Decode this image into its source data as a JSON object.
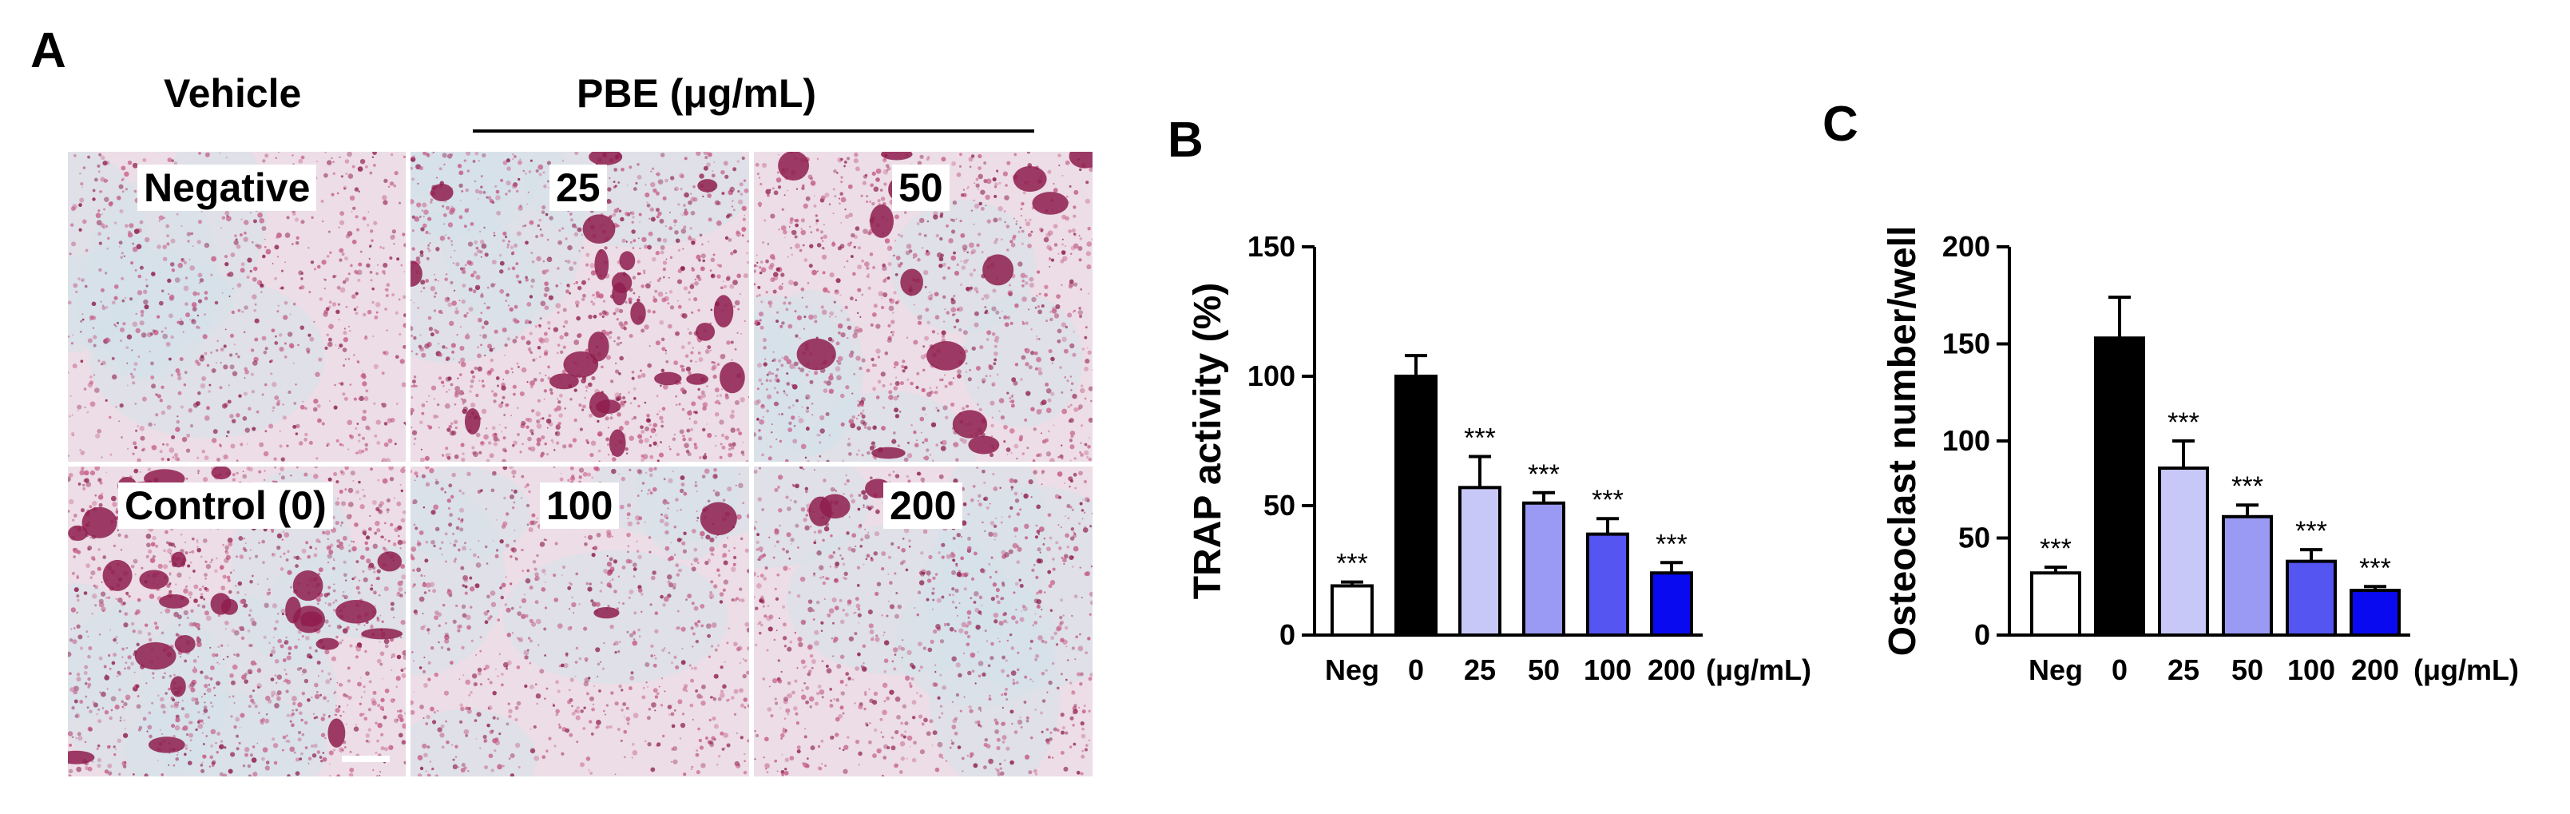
{
  "panel_a": {
    "letter": "A",
    "vehicle_header": "Vehicle",
    "pbe_header": "PBE (μg/mL)",
    "tiles": [
      {
        "label": "Negative",
        "density": 0.25,
        "large_cells": 0
      },
      {
        "label": "25",
        "density": 0.55,
        "large_cells": 22
      },
      {
        "label": "50",
        "density": 0.45,
        "large_cells": 14
      },
      {
        "label": "Control (0)",
        "density": 0.6,
        "large_cells": 26
      },
      {
        "label": "100",
        "density": 0.3,
        "large_cells": 2
      },
      {
        "label": "200",
        "density": 0.35,
        "large_cells": 3
      }
    ],
    "colors": {
      "background": "#ecdde6",
      "stain": "#8e1d4e",
      "light_stain": "#c45b86",
      "tint": "#d6e2ea"
    }
  },
  "chart_data": [
    {
      "panel": "B",
      "type": "bar",
      "title": "",
      "xlabel": "",
      "ylabel": "TRAP activity (%)",
      "ylim": [
        0,
        150
      ],
      "yticks": [
        0,
        50,
        100,
        150
      ],
      "categories": [
        "Neg",
        "0",
        "25",
        "50",
        "100",
        "200"
      ],
      "unit_label": "(μg/mL)",
      "values": [
        19,
        100,
        57,
        51,
        39,
        24
      ],
      "errors": [
        1.5,
        8,
        12,
        4,
        6,
        4
      ],
      "significance": [
        "***",
        "",
        "***",
        "***",
        "***",
        "***"
      ],
      "colors": [
        "#ffffff",
        "#000000",
        "#c8c8f8",
        "#9a9af5",
        "#5555f2",
        "#0a0af0"
      ],
      "grid": false,
      "legend": "none"
    },
    {
      "panel": "C",
      "type": "bar",
      "title": "",
      "xlabel": "",
      "ylabel": "Osteoclast number/well",
      "ylim": [
        0,
        200
      ],
      "yticks": [
        0,
        50,
        100,
        150,
        200
      ],
      "categories": [
        "Neg",
        "0",
        "25",
        "50",
        "100",
        "200"
      ],
      "unit_label": "(μg/mL)",
      "values": [
        32,
        153,
        86,
        61,
        38,
        23
      ],
      "errors": [
        3,
        21,
        14,
        6,
        6,
        2
      ],
      "significance": [
        "***",
        "",
        "***",
        "***",
        "***",
        "***"
      ],
      "colors": [
        "#ffffff",
        "#000000",
        "#c8c8f8",
        "#9a9af5",
        "#5555f2",
        "#0a0af0"
      ],
      "grid": false,
      "legend": "none"
    }
  ]
}
